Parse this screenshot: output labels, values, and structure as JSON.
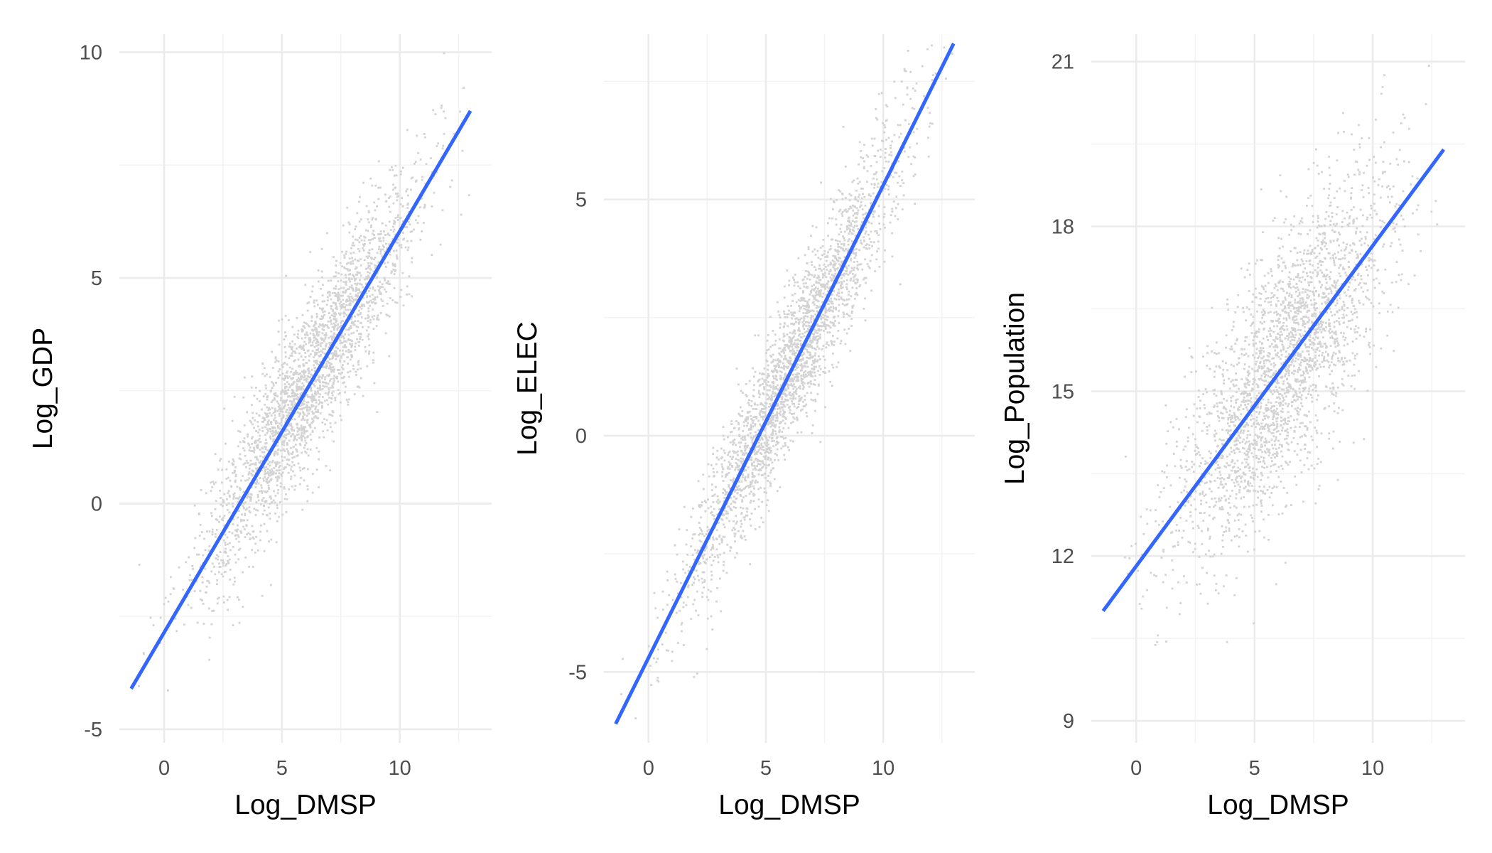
{
  "colors": {
    "background": "#ffffff",
    "grid_major": "#ebebeb",
    "grid_minor": "#f2f2f2",
    "points": "#d3d3d3",
    "fit_line": "#3366ff",
    "tick_text": "#4d4d4d",
    "axis_title": "#000000"
  },
  "chart_data": [
    {
      "type": "scatter",
      "xlabel": "Log_DMSP",
      "ylabel": "Log_GDP",
      "xlim": [
        -1.9,
        13.9
      ],
      "ylim": [
        -5.3,
        10.4
      ],
      "x_ticks": [
        0,
        5,
        10
      ],
      "y_ticks": [
        -5,
        0,
        5,
        10
      ],
      "grid": true,
      "points": {
        "n": 2600,
        "x_range": [
          -1.4,
          13.0
        ],
        "slope": 0.89,
        "intercept": -2.8,
        "spread": 0.9
      },
      "fit_line": {
        "x": [
          -1.4,
          13.0
        ],
        "y": [
          -4.1,
          8.7
        ]
      }
    },
    {
      "type": "scatter",
      "xlabel": "Log_DMSP",
      "ylabel": "Log_ELEC",
      "xlim": [
        -1.9,
        13.9
      ],
      "ylim": [
        -6.5,
        8.5
      ],
      "x_ticks": [
        0,
        5,
        10
      ],
      "y_ticks": [
        -5,
        0,
        5
      ],
      "grid": true,
      "points": {
        "n": 2600,
        "x_range": [
          -1.4,
          13.0
        ],
        "slope": 1.0,
        "intercept": -4.7,
        "spread": 0.8
      },
      "fit_line": {
        "x": [
          -1.4,
          13.0
        ],
        "y": [
          -6.1,
          8.3
        ]
      }
    },
    {
      "type": "scatter",
      "xlabel": "Log_DMSP",
      "ylabel": "Log_Population",
      "xlim": [
        -1.9,
        13.9
      ],
      "ylim": [
        8.6,
        21.5
      ],
      "x_ticks": [
        0,
        5,
        10
      ],
      "y_ticks": [
        9,
        12,
        15,
        18,
        21
      ],
      "grid": true,
      "points": {
        "n": 2600,
        "x_range": [
          -1.4,
          13.0
        ],
        "slope": 0.58,
        "intercept": 11.85,
        "spread": 1.1
      },
      "fit_line": {
        "x": [
          -1.4,
          13.0
        ],
        "y": [
          11.0,
          19.4
        ]
      }
    }
  ]
}
